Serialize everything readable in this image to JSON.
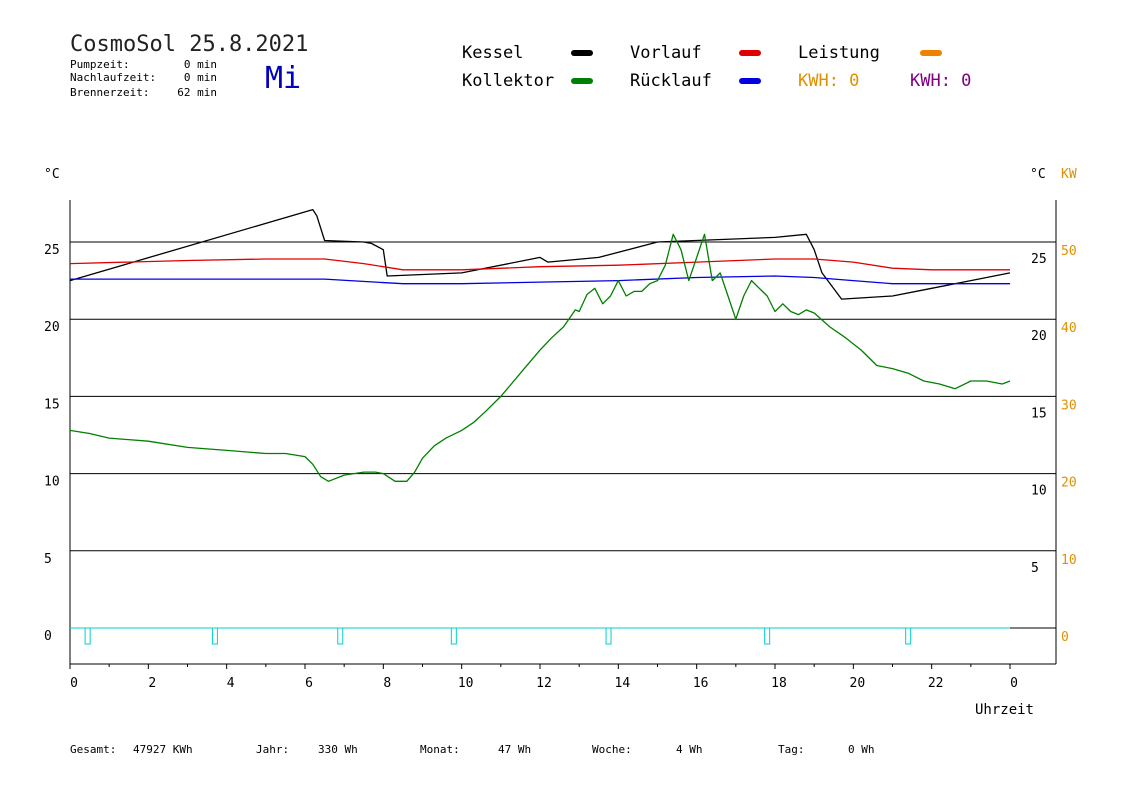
{
  "header": {
    "title": "CosmoSol 25.8.2021",
    "weekday": "Mi",
    "info": [
      {
        "label": "Pumpzeit:",
        "value": "0 min"
      },
      {
        "label": "Nachlaufzeit:",
        "value": "0 min"
      },
      {
        "label": "Brennerzeit:",
        "value": "62 min"
      }
    ]
  },
  "legend": {
    "items": [
      {
        "label": "Kessel",
        "color": "#000000"
      },
      {
        "label": "Vorlauf",
        "color": "#e00000"
      },
      {
        "label": "Leistung",
        "color": "#f08000"
      },
      {
        "label": "Kollektor",
        "color": "#008000"
      },
      {
        "label": "Rücklauf",
        "color": "#0000e0"
      }
    ],
    "kwh_orange": "KWH: 0",
    "kwh_purple": "KWH: 0"
  },
  "footer": {
    "items": [
      {
        "label": "Gesamt:",
        "value": "47927 KWh"
      },
      {
        "label": "Jahr:",
        "value": "330 Wh"
      },
      {
        "label": "Monat:",
        "value": "47 Wh"
      },
      {
        "label": "Woche:",
        "value": "4 Wh"
      },
      {
        "label": "Tag:",
        "value": "0 Wh"
      }
    ]
  },
  "colors": {
    "kessel": "#000000",
    "vorlauf": "#e00000",
    "ruecklauf": "#0000e0",
    "kollektor": "#008000",
    "pump": "#00d0d0",
    "accent_orange": "#e09000",
    "accent_purple": "#800080",
    "weekday_blue": "#0000c0"
  },
  "chart_data": {
    "type": "line",
    "xlabel": "Uhrzeit",
    "ylabel_left": "°C",
    "ylabel_right_temp": "°C",
    "ylabel_right_power": "KW",
    "x_ticks": [
      "0",
      "2",
      "4",
      "6",
      "8",
      "10",
      "12",
      "14",
      "16",
      "18",
      "20",
      "22",
      "0"
    ],
    "xlim": [
      0,
      24
    ],
    "ylim": [
      0,
      25
    ],
    "y_ticks_left": [
      "0",
      "5",
      "10",
      "15",
      "20",
      "25"
    ],
    "y_ticks_right_temp": [
      "5",
      "10",
      "15",
      "20",
      "25"
    ],
    "y_ticks_right_power": [
      "0",
      "10",
      "20",
      "30",
      "40",
      "50"
    ],
    "grid": true,
    "series": [
      {
        "name": "Kessel",
        "color": "#000000",
        "x": [
          0,
          6.2,
          6.3,
          6.5,
          7.5,
          7.7,
          8.0,
          8.1,
          10.0,
          12.0,
          12.2,
          13.5,
          15.0,
          18.0,
          18.8,
          19.0,
          19.2,
          19.7,
          21.0,
          22.0,
          23.0,
          24.0
        ],
        "y": [
          22.5,
          27.1,
          26.7,
          25.1,
          25.0,
          24.9,
          24.5,
          22.8,
          23.0,
          24.0,
          23.7,
          24.0,
          25.0,
          25.3,
          25.5,
          24.5,
          23.0,
          21.3,
          21.5,
          22.0,
          22.5,
          23.0
        ]
      },
      {
        "name": "Vorlauf",
        "color": "#e00000",
        "x": [
          0,
          3,
          5,
          6.5,
          7.5,
          8.5,
          10,
          12,
          14,
          16,
          18,
          19,
          20,
          21,
          22,
          24
        ],
        "y": [
          23.6,
          23.8,
          23.9,
          23.9,
          23.6,
          23.2,
          23.2,
          23.4,
          23.5,
          23.7,
          23.9,
          23.9,
          23.7,
          23.3,
          23.2,
          23.2
        ]
      },
      {
        "name": "Rücklauf",
        "color": "#0000e0",
        "x": [
          0,
          6.5,
          8.5,
          10,
          12,
          14,
          16,
          18,
          19,
          20,
          21,
          24
        ],
        "y": [
          22.6,
          22.6,
          22.3,
          22.3,
          22.4,
          22.5,
          22.7,
          22.8,
          22.7,
          22.5,
          22.3,
          22.3
        ]
      },
      {
        "name": "Kollektor",
        "color": "#008000",
        "x": [
          0,
          0.5,
          1,
          2,
          3,
          4,
          5,
          5.5,
          6.0,
          6.2,
          6.4,
          6.6,
          7.0,
          7.5,
          7.8,
          8.0,
          8.3,
          8.6,
          8.8,
          9.0,
          9.3,
          9.6,
          10.0,
          10.3,
          10.6,
          11.0,
          11.3,
          11.6,
          12.0,
          12.3,
          12.6,
          12.9,
          13.0,
          13.2,
          13.4,
          13.6,
          13.8,
          14.0,
          14.2,
          14.4,
          14.6,
          14.8,
          15.0,
          15.2,
          15.4,
          15.6,
          15.8,
          16.0,
          16.2,
          16.4,
          16.6,
          16.8,
          17.0,
          17.2,
          17.4,
          17.6,
          17.8,
          18.0,
          18.2,
          18.4,
          18.6,
          18.8,
          19.0,
          19.4,
          19.8,
          20.2,
          20.6,
          21.0,
          21.4,
          21.8,
          22.2,
          22.6,
          23.0,
          23.4,
          23.8,
          24.0
        ],
        "y": [
          12.8,
          12.6,
          12.3,
          12.1,
          11.7,
          11.5,
          11.3,
          11.3,
          11.1,
          10.6,
          9.8,
          9.5,
          9.9,
          10.1,
          10.1,
          10.0,
          9.5,
          9.5,
          10.1,
          11.0,
          11.8,
          12.3,
          12.8,
          13.3,
          14.0,
          15.0,
          15.9,
          16.8,
          18.0,
          18.8,
          19.5,
          20.6,
          20.5,
          21.6,
          22.0,
          21.0,
          21.5,
          22.5,
          21.5,
          21.8,
          21.8,
          22.3,
          22.5,
          23.5,
          25.5,
          24.5,
          22.5,
          24.0,
          25.5,
          22.5,
          23.0,
          21.5,
          20.0,
          21.5,
          22.5,
          22.0,
          21.5,
          20.5,
          21.0,
          20.5,
          20.3,
          20.6,
          20.4,
          19.5,
          18.8,
          18.0,
          17.0,
          16.8,
          16.5,
          16.0,
          15.8,
          15.5,
          16.0,
          16.0,
          15.8,
          16.0
        ]
      },
      {
        "name": "Pumpe",
        "color": "#00d0d0",
        "x": [
          0.45,
          3.7,
          6.9,
          9.8,
          13.75,
          17.8,
          21.4
        ],
        "y": [
          0,
          0,
          0,
          0,
          0,
          0,
          0
        ]
      }
    ]
  }
}
